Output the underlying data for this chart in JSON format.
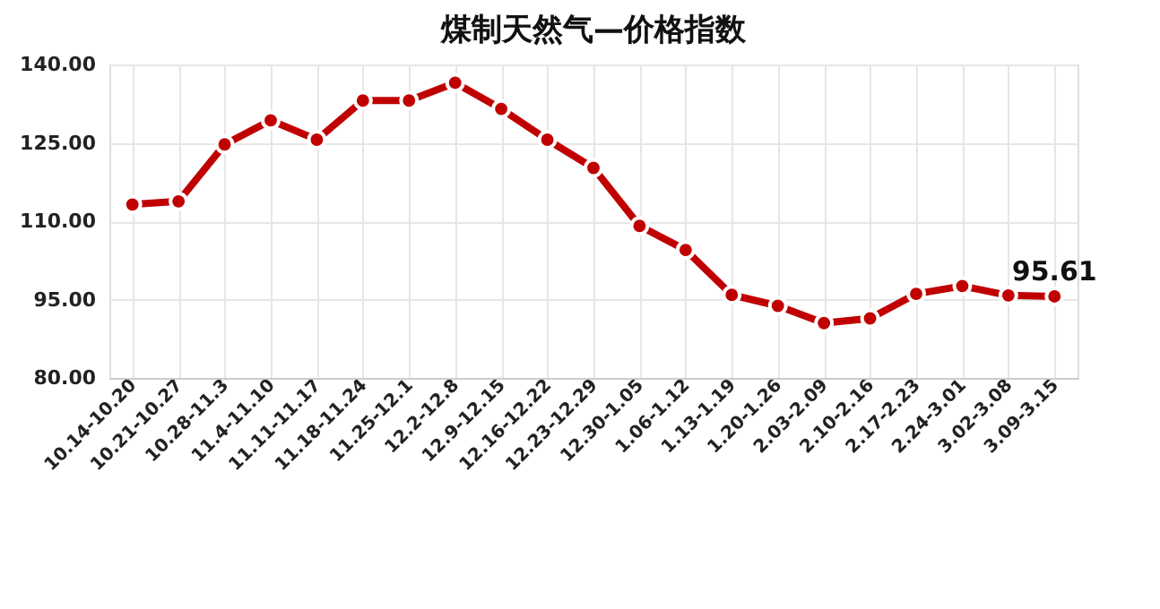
{
  "chart_data": {
    "type": "line",
    "title": "煤制天然气—价格指数",
    "categories": [
      "10.14-10.20",
      "10.21-10.27",
      "10.28-11.3",
      "11.4-11.10",
      "11.11-11.17",
      "11.18-11.24",
      "11.25-12.1",
      "12.2-12.8",
      "12.9-12.15",
      "12.16-12.22",
      "12.23-12.29",
      "12.30-1.05",
      "1.06-1.12",
      "1.13-1.19",
      "1.20-1.26",
      "2.03-2.09",
      "2.10-2.16",
      "2.17-2.23",
      "2.24-3.01",
      "3.02-3.08",
      "3.09-3.15"
    ],
    "series": [
      {
        "color": "#c00000",
        "values": [
          113.2,
          113.8,
          124.7,
          129.3,
          125.6,
          133.1,
          133.1,
          136.5,
          131.5,
          125.6,
          120.2,
          109.1,
          104.5,
          95.9,
          93.8,
          90.5,
          91.4,
          96.1,
          97.6,
          95.8,
          95.61
        ],
        "value_labels": [
          null,
          null,
          null,
          null,
          null,
          null,
          null,
          null,
          null,
          null,
          null,
          null,
          null,
          null,
          null,
          null,
          null,
          null,
          null,
          null,
          "95.61"
        ]
      }
    ],
    "ylim": [
      80,
      140
    ],
    "yticks": [
      {
        "value": 80,
        "label": "80.00"
      },
      {
        "value": 95,
        "label": "95.00"
      },
      {
        "value": 110,
        "label": "110.00"
      },
      {
        "value": 125,
        "label": "125.00"
      },
      {
        "value": 140,
        "label": "140.00"
      }
    ],
    "grid": true,
    "marker": "circle",
    "line_style": "solid"
  }
}
